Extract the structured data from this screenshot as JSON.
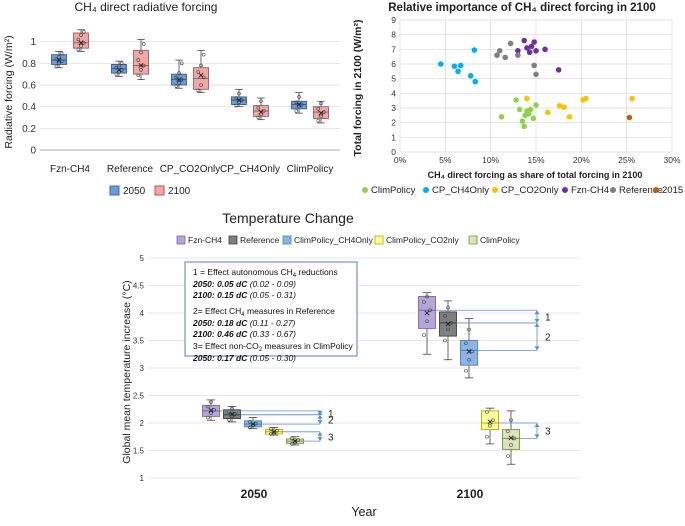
{
  "chart_data": [
    {
      "type": "box",
      "title": "CH₄ direct radiative forcing",
      "ylabel": "Radiative forcing (W/m²)",
      "ylim": [
        0,
        1.2
      ],
      "yticks": [
        0,
        0.2,
        0.4,
        0.6,
        0.8,
        1
      ],
      "ytick_labels": [
        "0",
        "0.2",
        "0.4",
        "0.6",
        "0.8",
        "1"
      ],
      "categories": [
        "Fzn-CH4",
        "Reference",
        "CP_CO2Only",
        "CP_CH4Only",
        "ClimPolicy"
      ],
      "legend": [
        {
          "name": "2050",
          "color": "#6d9bd6"
        },
        {
          "name": "2100",
          "color": "#f0a7a7"
        }
      ],
      "series": [
        {
          "name": "2050",
          "boxes": [
            {
              "min": 0.76,
              "q1": 0.79,
              "median": 0.83,
              "mean": 0.83,
              "q3": 0.88,
              "max": 0.91,
              "points": [
                0.77,
                0.8,
                0.82,
                0.84,
                0.86,
                0.89
              ]
            },
            {
              "min": 0.68,
              "q1": 0.71,
              "median": 0.75,
              "mean": 0.74,
              "q3": 0.79,
              "max": 0.82,
              "points": [
                0.7,
                0.72,
                0.74,
                0.76,
                0.78,
                0.8
              ]
            },
            {
              "min": 0.57,
              "q1": 0.6,
              "median": 0.65,
              "mean": 0.65,
              "q3": 0.7,
              "max": 0.83,
              "points": [
                0.59,
                0.62,
                0.65,
                0.67,
                0.71,
                0.8
              ]
            },
            {
              "min": 0.4,
              "q1": 0.42,
              "median": 0.46,
              "mean": 0.46,
              "q3": 0.49,
              "max": 0.56,
              "points": [
                0.41,
                0.44,
                0.46,
                0.48,
                0.52
              ]
            },
            {
              "min": 0.34,
              "q1": 0.38,
              "median": 0.42,
              "mean": 0.42,
              "q3": 0.45,
              "max": 0.53,
              "points": [
                0.36,
                0.4,
                0.42,
                0.44,
                0.49
              ]
            }
          ]
        },
        {
          "name": "2100",
          "boxes": [
            {
              "min": 0.91,
              "q1": 0.94,
              "median": 0.99,
              "mean": 0.99,
              "q3": 1.08,
              "max": 1.11,
              "points": [
                0.93,
                0.96,
                0.99,
                1.02,
                1.06,
                1.09
              ]
            },
            {
              "min": 0.65,
              "q1": 0.7,
              "median": 0.78,
              "mean": 0.78,
              "q3": 0.92,
              "max": 1.02,
              "points": [
                0.69,
                0.74,
                0.78,
                0.83,
                0.9,
                0.98
              ]
            },
            {
              "min": 0.53,
              "q1": 0.56,
              "median": 0.66,
              "mean": 0.69,
              "q3": 0.76,
              "max": 0.92,
              "points": [
                0.55,
                0.6,
                0.67,
                0.72,
                0.78,
                0.88
              ]
            },
            {
              "min": 0.28,
              "q1": 0.31,
              "median": 0.36,
              "mean": 0.35,
              "q3": 0.41,
              "max": 0.48,
              "points": [
                0.3,
                0.33,
                0.36,
                0.39,
                0.45
              ]
            },
            {
              "min": 0.25,
              "q1": 0.29,
              "median": 0.35,
              "mean": 0.34,
              "q3": 0.4,
              "max": 0.45,
              "points": [
                0.27,
                0.31,
                0.35,
                0.38,
                0.43
              ]
            }
          ]
        }
      ]
    },
    {
      "type": "scatter",
      "title": "Relative importance of CH₄ direct forcing in 2100",
      "xlabel": "CH₄ direct forcing as share of total forcing in 2100",
      "ylabel": "Total forcing in 2100 (W/m²)",
      "xlim": [
        0,
        0.3
      ],
      "ylim": [
        0,
        9
      ],
      "xticks": [
        0,
        0.05,
        0.1,
        0.15,
        0.2,
        0.25,
        0.3
      ],
      "xtick_labels": [
        "0%",
        "5%",
        "10%",
        "15%",
        "20%",
        "25%",
        "30%"
      ],
      "yticks": [
        0,
        1,
        2,
        3,
        4,
        5,
        6,
        7,
        8,
        9
      ],
      "ytick_labels": [
        "0",
        "1",
        "2",
        "3",
        "4",
        "5",
        "6",
        "7",
        "8",
        "9"
      ],
      "legend_labels": [
        "ClimPolicy",
        "CP_CH4Only",
        "CP_CO2Only",
        "Fzn-CH4",
        "Reference",
        "2015"
      ],
      "series": [
        {
          "name": "ClimPolicy",
          "color": "#92d050",
          "points": [
            [
              0.112,
              2.4
            ],
            [
              0.128,
              3.55
            ],
            [
              0.132,
              2.9
            ],
            [
              0.135,
              2.1
            ],
            [
              0.137,
              1.75
            ],
            [
              0.138,
              2.5
            ],
            [
              0.14,
              2.8
            ],
            [
              0.142,
              2.6
            ],
            [
              0.144,
              2.9
            ],
            [
              0.147,
              2.3
            ],
            [
              0.15,
              3.2
            ]
          ]
        },
        {
          "name": "CP_CH4Only",
          "color": "#00b0f0",
          "points": [
            [
              0.045,
              6.0
            ],
            [
              0.06,
              5.85
            ],
            [
              0.064,
              5.5
            ],
            [
              0.067,
              5.9
            ],
            [
              0.078,
              5.2
            ],
            [
              0.082,
              6.95
            ],
            [
              0.083,
              4.8
            ]
          ]
        },
        {
          "name": "CP_CO2Only",
          "color": "#ffc000",
          "points": [
            [
              0.14,
              3.65
            ],
            [
              0.163,
              2.7
            ],
            [
              0.176,
              3.15
            ],
            [
              0.181,
              3.05
            ],
            [
              0.187,
              2.4
            ],
            [
              0.202,
              3.55
            ],
            [
              0.205,
              3.65
            ],
            [
              0.256,
              3.65
            ]
          ]
        },
        {
          "name": "Fzn-CH4",
          "color": "#7030a0",
          "points": [
            [
              0.13,
              6.9
            ],
            [
              0.137,
              7.6
            ],
            [
              0.14,
              7.1
            ],
            [
              0.143,
              6.8
            ],
            [
              0.145,
              7.2
            ],
            [
              0.148,
              7.5
            ],
            [
              0.15,
              6.9
            ],
            [
              0.16,
              7.0
            ],
            [
              0.175,
              5.6
            ]
          ]
        },
        {
          "name": "Reference",
          "color": "#808080",
          "points": [
            [
              0.107,
              6.6
            ],
            [
              0.11,
              6.9
            ],
            [
              0.116,
              6.45
            ],
            [
              0.122,
              7.4
            ],
            [
              0.13,
              6.6
            ],
            [
              0.148,
              5.9
            ],
            [
              0.15,
              5.3
            ]
          ]
        },
        {
          "name": "2015",
          "color": "#c55a11",
          "points": [
            [
              0.253,
              2.35
            ]
          ]
        }
      ]
    },
    {
      "type": "box",
      "title": "Temperature Change",
      "xlabel": "Year",
      "ylabel": "Global mean temperature increase (°C)",
      "ylim": [
        1,
        5
      ],
      "yticks": [
        1,
        1.5,
        2,
        2.5,
        3,
        3.5,
        4,
        4.5,
        5
      ],
      "ytick_labels": [
        "1",
        "1.5",
        "2",
        "2.5",
        "3",
        "3.5",
        "4",
        "4.5",
        "5"
      ],
      "groups": [
        "2050",
        "2100"
      ],
      "legend_labels": [
        "Fzn-CH4",
        "Reference",
        "ClimPolicy_CH4Only",
        "ClimPolicy_CO2nly",
        "ClimPolicy"
      ],
      "series": [
        {
          "name": "Fzn-CH4",
          "color": "#b4a7d6",
          "stroke": "#8064a2",
          "boxes": [
            {
              "min": 2.05,
              "q1": 2.12,
              "median": 2.22,
              "mean": 2.23,
              "q3": 2.32,
              "max": 2.42,
              "points": [
                2.1,
                2.18,
                2.24,
                2.3,
                2.38
              ]
            },
            {
              "min": 3.25,
              "q1": 3.72,
              "median": 4.05,
              "mean": 4.0,
              "q3": 4.3,
              "max": 4.37,
              "points": [
                3.6,
                3.85,
                4.05,
                4.2,
                4.3
              ]
            }
          ]
        },
        {
          "name": "Reference",
          "color": "#7f7f7f",
          "stroke": "#404040",
          "boxes": [
            {
              "min": 2.02,
              "q1": 2.08,
              "median": 2.15,
              "mean": 2.16,
              "q3": 2.24,
              "max": 2.3,
              "points": [
                2.06,
                2.12,
                2.16,
                2.2,
                2.26
              ]
            },
            {
              "min": 3.15,
              "q1": 3.58,
              "median": 3.82,
              "mean": 3.8,
              "q3": 4.02,
              "max": 4.22,
              "points": [
                3.5,
                3.7,
                3.82,
                3.95,
                4.1
              ]
            }
          ]
        },
        {
          "name": "ClimPolicy_CH4Only",
          "color": "#8db4e2",
          "stroke": "#4f81bd",
          "boxes": [
            {
              "min": 1.9,
              "q1": 1.93,
              "median": 1.98,
              "mean": 1.98,
              "q3": 2.04,
              "max": 2.1,
              "points": [
                1.92,
                1.96,
                1.99,
                2.02
              ]
            },
            {
              "min": 2.82,
              "q1": 3.05,
              "median": 3.32,
              "mean": 3.3,
              "q3": 3.5,
              "max": 3.9,
              "points": [
                2.95,
                3.15,
                3.3,
                3.45,
                3.7
              ]
            }
          ]
        },
        {
          "name": "ClimPolicy_CO2nly",
          "color": "#ffff99",
          "stroke": "#bfa700",
          "boxes": [
            {
              "min": 1.78,
              "q1": 1.8,
              "median": 1.84,
              "mean": 1.84,
              "q3": 1.88,
              "max": 1.92,
              "points": [
                1.8,
                1.83,
                1.86,
                1.89
              ]
            },
            {
              "min": 1.62,
              "q1": 1.88,
              "median": 2.0,
              "mean": 2.02,
              "q3": 2.22,
              "max": 2.27,
              "points": [
                1.75,
                1.95,
                2.05,
                2.2
              ]
            }
          ]
        },
        {
          "name": "ClimPolicy",
          "color": "#d7e4bd",
          "stroke": "#77933c",
          "boxes": [
            {
              "min": 1.6,
              "q1": 1.63,
              "median": 1.67,
              "mean": 1.67,
              "q3": 1.71,
              "max": 1.75,
              "points": [
                1.62,
                1.66,
                1.69,
                1.72
              ]
            },
            {
              "min": 1.25,
              "q1": 1.52,
              "median": 1.72,
              "mean": 1.73,
              "q3": 1.88,
              "max": 2.22,
              "points": [
                1.4,
                1.6,
                1.72,
                1.85,
                2.05
              ]
            }
          ]
        }
      ],
      "bracket_labels": [
        "1",
        "2",
        "3"
      ],
      "annotation": {
        "e1_title": "1 = Effect autonomous CH",
        "e1_title_sub": "4",
        "e1_title_end": " reductions",
        "e1_2050_bold": "2050: 0.05 dC",
        "e1_2050_range": " (0.02 - 0.09)",
        "e1_2100_bold": "2100: 0.15 dC",
        "e1_2100_range": " (0.05 - 0.31)",
        "e2_title": "2= Effect CH",
        "e2_title_sub": "4",
        "e2_title_end": " measures in Reference",
        "e2_2050_bold": "2050: 0.18 dC",
        "e2_2050_range": " (0.11 - 0.27)",
        "e2_2100_bold": "2100: 0.46 dC",
        "e2_2100_range": " (0.33 - 0.67)",
        "e3_title": "3= Effect non-CO",
        "e3_title_sub": "2",
        "e3_title_end": " measures in ClimPolicy",
        "e3_2050_bold": "2050: 0.17 dC",
        "e3_2050_range": " (0.05 - 0.30)"
      }
    }
  ]
}
